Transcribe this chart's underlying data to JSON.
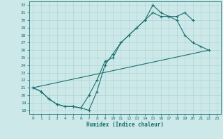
{
  "xlabel": "Humidex (Indice chaleur)",
  "bg_color": "#cde8e8",
  "grid_color": "#aad0d0",
  "line_color": "#1a7070",
  "xlim": [
    -0.5,
    23.5
  ],
  "ylim": [
    17.5,
    32.5
  ],
  "xticks": [
    0,
    1,
    2,
    3,
    4,
    5,
    6,
    7,
    8,
    9,
    10,
    11,
    12,
    13,
    14,
    15,
    16,
    17,
    18,
    19,
    20,
    21,
    22,
    23
  ],
  "yticks": [
    18,
    19,
    20,
    21,
    22,
    23,
    24,
    25,
    26,
    27,
    28,
    29,
    30,
    31,
    32
  ],
  "line1_x": [
    0,
    1,
    2,
    3,
    4,
    5,
    6,
    7,
    8,
    9,
    10,
    11,
    12,
    13,
    14,
    15,
    16,
    17,
    18,
    19,
    20,
    21,
    22
  ],
  "line1_y": [
    21,
    20.5,
    19.5,
    18.8,
    18.5,
    18.5,
    18.3,
    18,
    20.5,
    24,
    25.5,
    27,
    28,
    29,
    30,
    32,
    31,
    30.5,
    30.5,
    31,
    30,
    null,
    null
  ],
  "line2_x": [
    0,
    1,
    2,
    3,
    4,
    5,
    6,
    7,
    8,
    9,
    10,
    11,
    12,
    13,
    14,
    15,
    16,
    17,
    18,
    19,
    20,
    21,
    22
  ],
  "line2_y": [
    21,
    20.5,
    19.5,
    18.8,
    18.5,
    18.5,
    18.3,
    20,
    22,
    24.5,
    25,
    27,
    28,
    29,
    30,
    31,
    30.5,
    30.5,
    30,
    28,
    27,
    26.5,
    26
  ],
  "line3_x": [
    0,
    22
  ],
  "line3_y": [
    21,
    26
  ]
}
